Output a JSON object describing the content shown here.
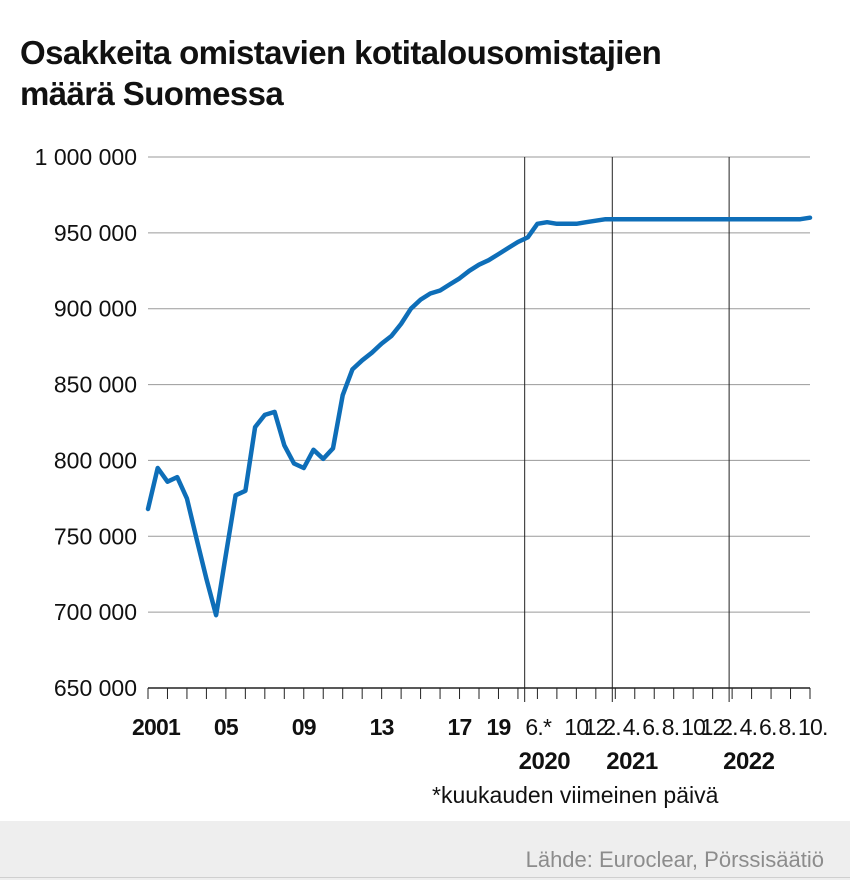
{
  "title_lines": [
    "Osakkeita omistavien kotitalousomistajien",
    "määrä Suomessa"
  ],
  "note": "*kuukauden viimeinen päivä",
  "source": "Lähde: Euroclear, Pörssisäätiö",
  "colors": {
    "line": "#0e6eb8",
    "grid": "#9a9a9a",
    "axis": "#222222",
    "footer_bg": "#eeeeee",
    "source_text": "#8c8c8c"
  },
  "chart_data": {
    "type": "line",
    "title": "Osakkeita omistavien kotitalousomistajien määrä Suomessa",
    "ylim": [
      650000,
      1000000
    ],
    "y_ticks": [
      650000,
      700000,
      750000,
      800000,
      850000,
      900000,
      950000,
      1000000
    ],
    "y_tick_labels": [
      "650 000",
      "700 000",
      "750 000",
      "800 000",
      "850 000",
      "900 000",
      "950 000",
      "1 000 000"
    ],
    "grid": "horizontal",
    "x_tick_labels": [
      {
        "label": "2001",
        "index": 0,
        "bold": true
      },
      {
        "label": "05",
        "index": 4,
        "bold": true
      },
      {
        "label": "09",
        "index": 8,
        "bold": true
      },
      {
        "label": "13",
        "index": 12,
        "bold": true
      },
      {
        "label": "17",
        "index": 16,
        "bold": true
      },
      {
        "label": "19",
        "index": 18,
        "bold": true
      },
      {
        "label": "6.*",
        "index": 20,
        "bold": false
      },
      {
        "label": "10.",
        "index": 22,
        "bold": false
      },
      {
        "label": "12.",
        "index": 23,
        "bold": false
      },
      {
        "label": "2.",
        "index": 24,
        "bold": false
      },
      {
        "label": "4.",
        "index": 25,
        "bold": false
      },
      {
        "label": "6.",
        "index": 26,
        "bold": false
      },
      {
        "label": "8.",
        "index": 27,
        "bold": false
      },
      {
        "label": "10.",
        "index": 28,
        "bold": false
      },
      {
        "label": "12.",
        "index": 29,
        "bold": false
      },
      {
        "label": "2.",
        "index": 30,
        "bold": false
      },
      {
        "label": "4.",
        "index": 31,
        "bold": false
      },
      {
        "label": "6.",
        "index": 32,
        "bold": false
      },
      {
        "label": "8.",
        "index": 33,
        "bold": false
      },
      {
        "label": "10.",
        "index": 34,
        "bold": false
      }
    ],
    "year_labels": [
      {
        "label": "2020",
        "index": 19.5
      },
      {
        "label": "2021",
        "index": 24
      },
      {
        "label": "2022",
        "index": 30
      }
    ],
    "year_dividers": [
      19.5,
      24,
      30
    ],
    "x_positions": [
      0,
      0.5,
      1,
      1.5,
      2,
      2.5,
      3,
      3.5,
      4,
      4.5,
      5,
      5.5,
      6,
      6.5,
      7,
      7.5,
      8,
      8.5,
      9,
      9.5,
      10,
      10.5,
      11,
      11.5,
      12,
      12.5,
      13,
      13.5,
      14,
      14.5,
      15,
      15.5,
      16,
      16.5,
      17,
      17.5,
      18,
      18.5,
      19,
      19.5,
      20,
      20.5,
      21,
      21.5,
      22,
      22.5,
      23,
      23.5,
      24,
      24.5,
      25,
      25.5,
      26,
      26.5,
      27,
      27.5,
      28,
      28.5,
      29,
      29.5,
      30,
      30.5,
      31,
      31.5,
      32,
      32.5,
      33,
      33.5,
      34
    ],
    "series": [
      {
        "values": [
          768000,
          795000,
          786000,
          789000,
          775000,
          748000,
          722000,
          698000,
          738000,
          777000,
          780000,
          822000,
          830000,
          832000,
          810000,
          798000,
          795000,
          807000,
          801000,
          808000,
          843000,
          860000,
          866000,
          871000,
          877000,
          882000,
          890000,
          900000,
          906000,
          910000,
          912000,
          916000,
          920000,
          925000,
          929000,
          932000,
          936000,
          940000,
          944000,
          947000,
          956000,
          957000,
          956000,
          956000,
          956000,
          957000,
          958000,
          959000,
          959000,
          959000,
          959000,
          959000,
          959000,
          959000,
          959000,
          959000,
          959000,
          959000,
          959000,
          959000,
          959000,
          959000,
          959000,
          959000,
          959000,
          959000,
          959000,
          959000,
          960000
        ]
      }
    ]
  }
}
